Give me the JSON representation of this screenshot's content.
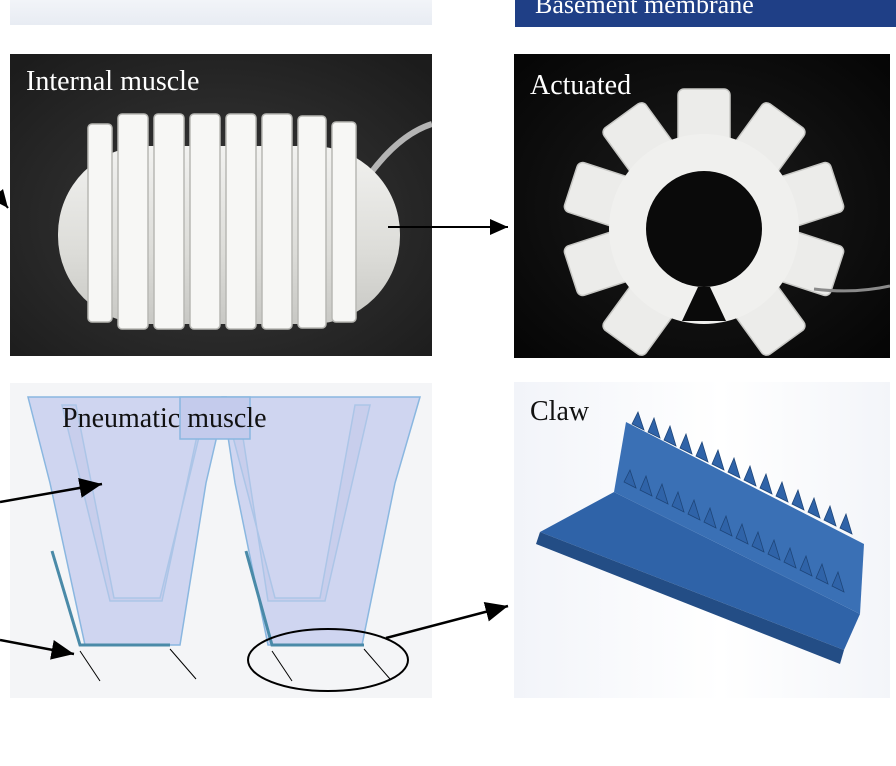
{
  "banner": {
    "text": "Basement membrane",
    "color": "#1f3f86"
  },
  "panels": {
    "internal_muscle": {
      "label": "Internal muscle"
    },
    "actuated": {
      "label": "Actuated"
    },
    "pneumatic_muscle": {
      "label": "Pneumatic muscle"
    },
    "claw": {
      "label": "Claw"
    }
  },
  "colors": {
    "photo_bg": "#2a2a2a",
    "silicone": "#e6e6e4",
    "muscle_fill": "#cfd5f0",
    "muscle_stroke": "#8ab7e0",
    "claw_blue": "#2f63a8",
    "arrow": "#000000"
  }
}
